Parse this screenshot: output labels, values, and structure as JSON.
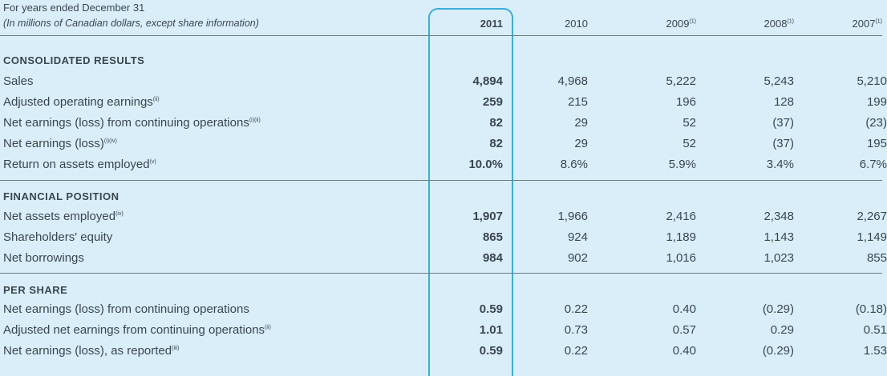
{
  "header": {
    "line1": "For years ended December 31",
    "line2": "(In millions of Canadian dollars, except share information)",
    "years": [
      {
        "label": "2011",
        "note": ""
      },
      {
        "label": "2010",
        "note": ""
      },
      {
        "label": "2009",
        "note": "(1)"
      },
      {
        "label": "2008",
        "note": "(1)"
      },
      {
        "label": "2007",
        "note": "(1)"
      }
    ]
  },
  "sections": {
    "consolidated": "CONSOLIDATED RESULTS",
    "financial": "FINANCIAL POSITION",
    "per_share": "PER SHARE"
  },
  "rows": {
    "sales": {
      "label": "Sales",
      "note": "",
      "v": [
        "4,894",
        "4,968",
        "5,222",
        "5,243",
        "5,210"
      ]
    },
    "adj_op": {
      "label": "Adjusted operating earnings",
      "note": "(ii)",
      "v": [
        "259",
        "215",
        "196",
        "128",
        "199"
      ]
    },
    "net_cont": {
      "label": "Net earnings (loss) from continuing operations",
      "note": "(i)(ii)",
      "v": [
        "82",
        "29",
        "52",
        "(37)",
        "(23)"
      ]
    },
    "net_earn": {
      "label": "Net earnings (loss)",
      "note": "(i)(iv)",
      "v": [
        "82",
        "29",
        "52",
        "(37)",
        "195"
      ]
    },
    "roae": {
      "label": "Return on assets employed",
      "note": "(v)",
      "v": [
        "10.0%",
        "8.6%",
        "5.9%",
        "3.4%",
        "6.7%"
      ]
    },
    "nae": {
      "label": "Net assets employed",
      "note": "(iv)",
      "v": [
        "1,907",
        "1,966",
        "2,416",
        "2,348",
        "2,267"
      ]
    },
    "equity": {
      "label": "Shareholders' equity",
      "note": "",
      "v": [
        "865",
        "924",
        "1,189",
        "1,143",
        "1,149"
      ]
    },
    "borrow": {
      "label": "Net borrowings",
      "note": "",
      "v": [
        "984",
        "902",
        "1,016",
        "1,023",
        "855"
      ]
    },
    "ps_cont": {
      "label": "Net earnings (loss) from continuing operations",
      "note": "",
      "v": [
        "0.59",
        "0.22",
        "0.40",
        "(0.29)",
        "(0.18)"
      ]
    },
    "ps_adj": {
      "label": "Adjusted net earnings from continuing operations",
      "note": "(ii)",
      "v": [
        "1.01",
        "0.73",
        "0.57",
        "0.29",
        "0.51"
      ]
    },
    "ps_rep": {
      "label": "Net earnings (loss), as reported",
      "note": "(iii)",
      "v": [
        "0.59",
        "0.22",
        "0.40",
        "(0.29)",
        "1.53"
      ]
    }
  }
}
